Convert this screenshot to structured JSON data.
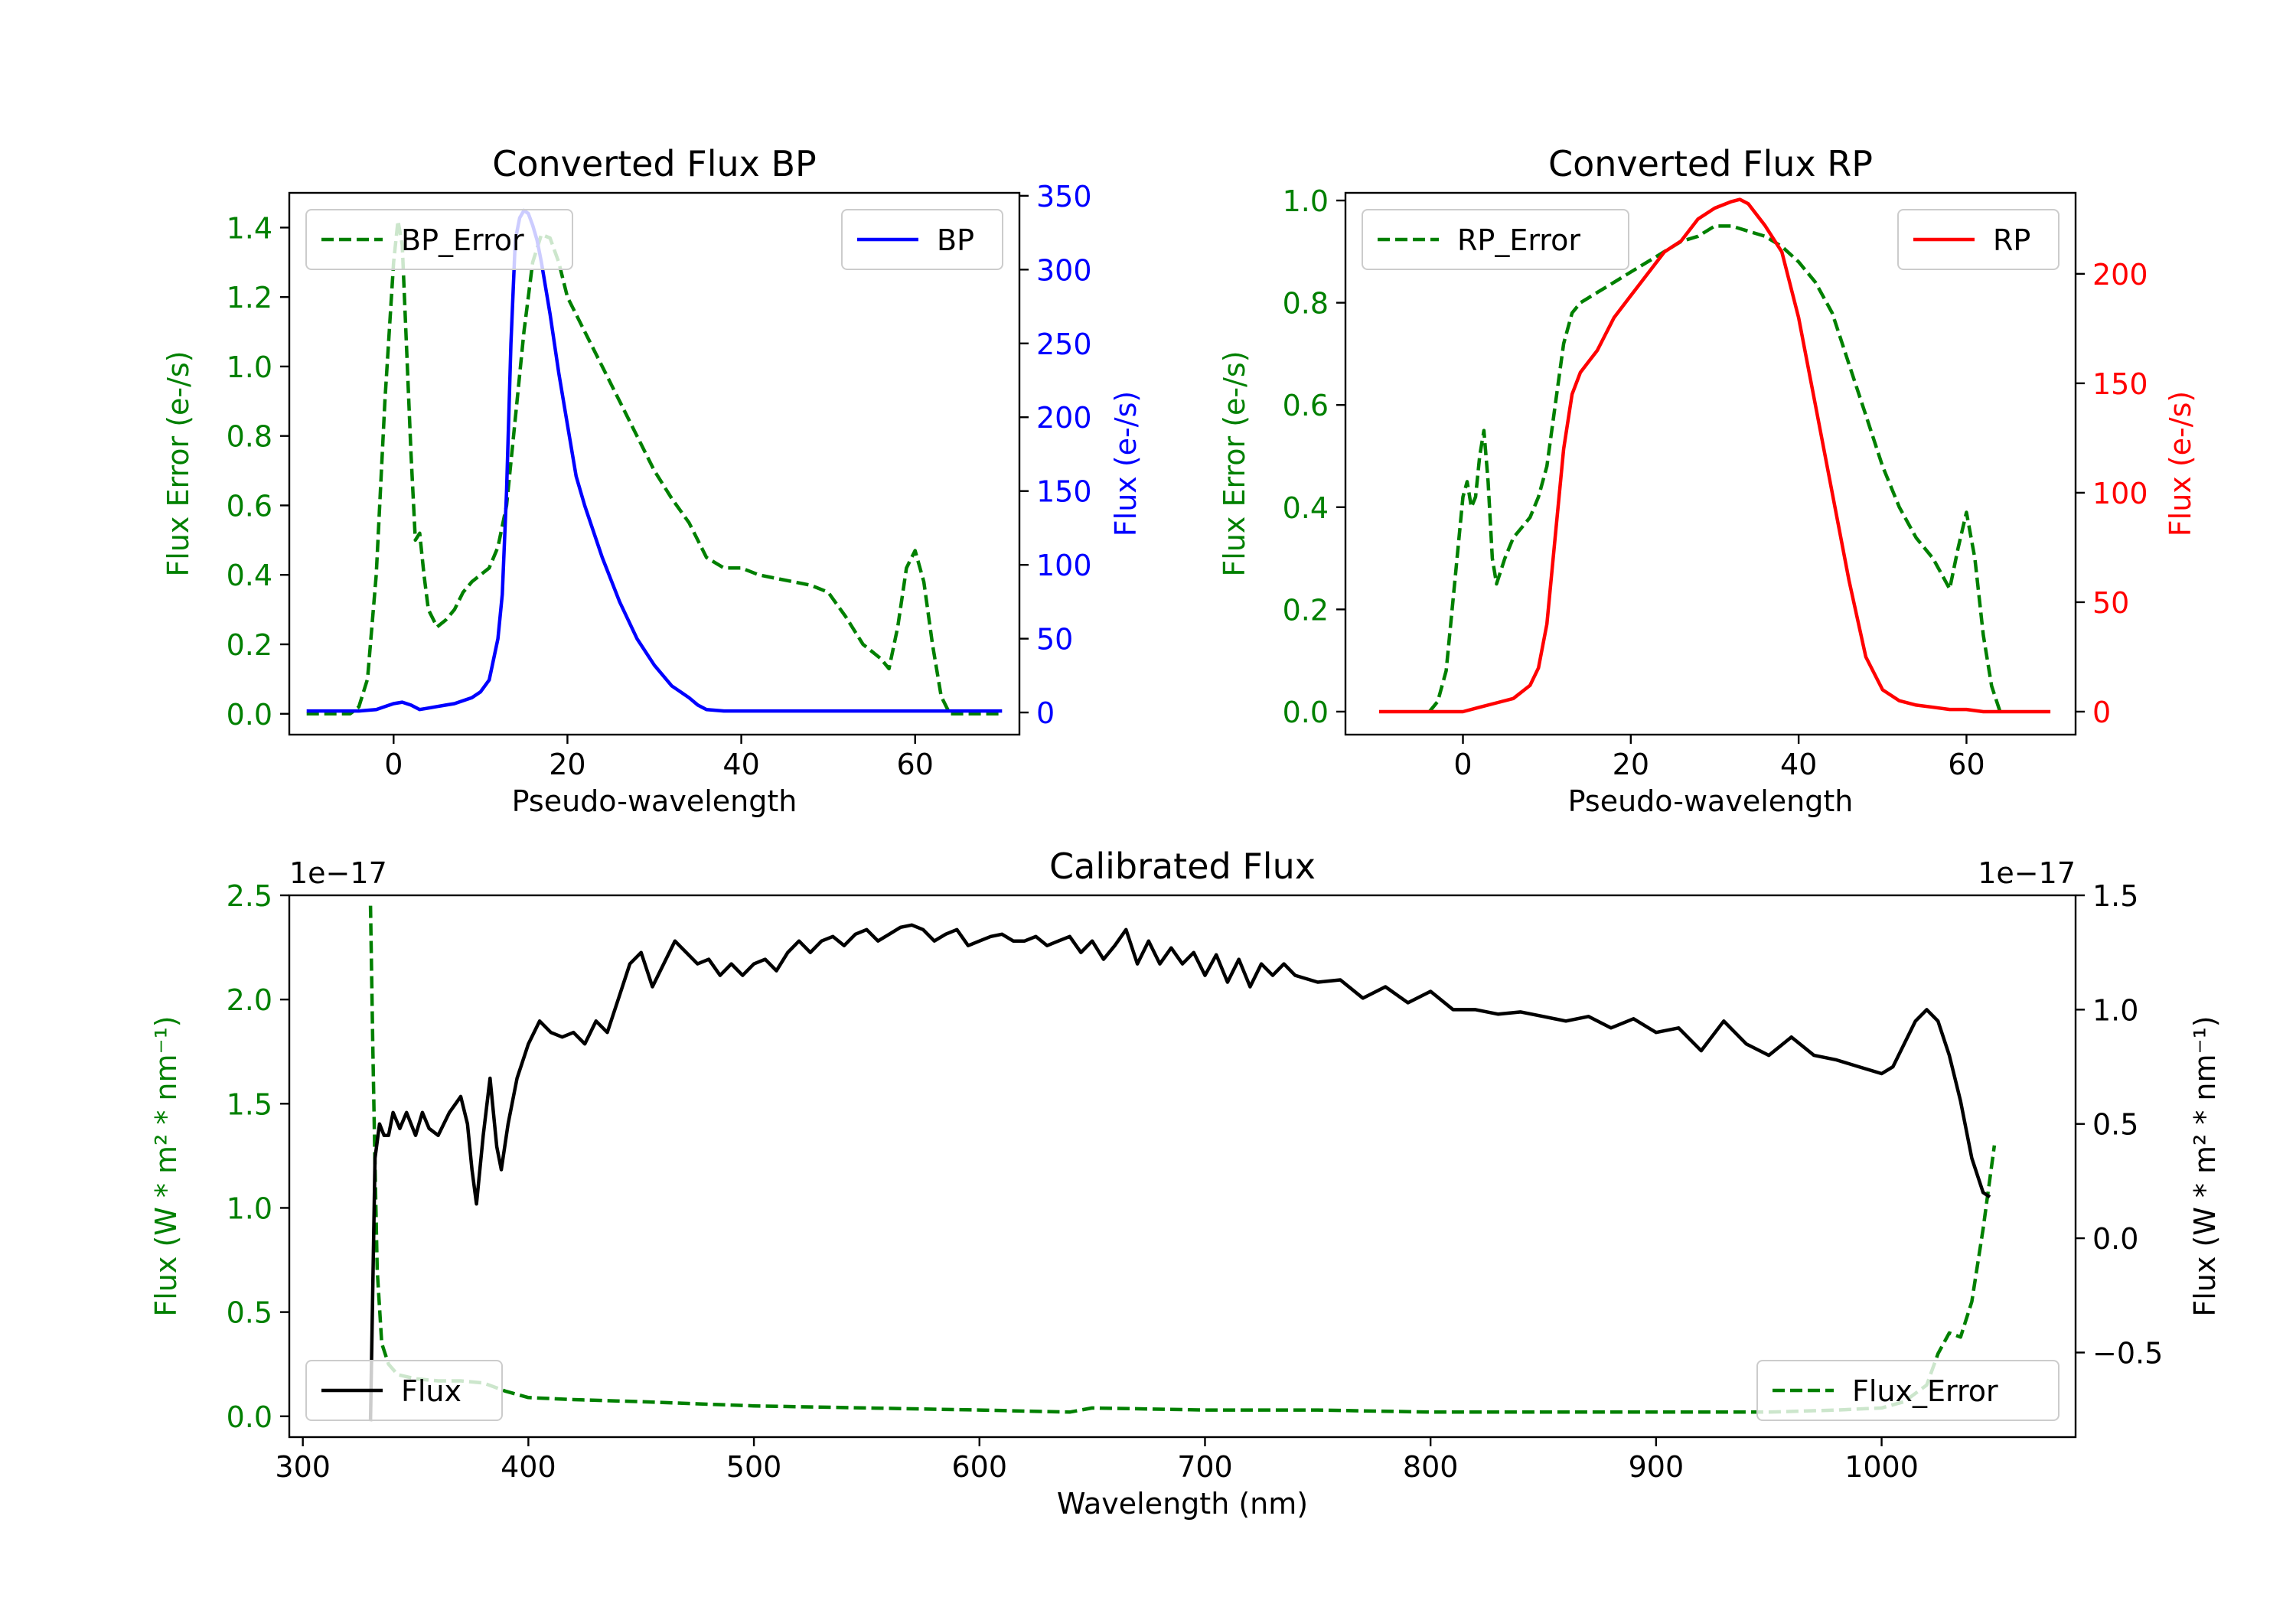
{
  "chart_data": [
    {
      "id": "bp",
      "type": "line",
      "title": "Converted Flux BP",
      "xlabel": "Pseudo-wavelength",
      "ylabel_left": "Flux Error (e-/s)",
      "ylabel_right": "Flux (e-/s)",
      "xlim": [
        -12,
        72
      ],
      "ylim_left": [
        -0.06,
        1.5
      ],
      "ylim_right": [
        -15,
        352
      ],
      "xticks": [
        0,
        20,
        40,
        60
      ],
      "yticks_left": [
        0.0,
        0.2,
        0.4,
        0.6,
        0.8,
        1.0,
        1.2,
        1.4
      ],
      "yticks_right": [
        0,
        50,
        100,
        150,
        200,
        250,
        300,
        350
      ],
      "left_color": "#008000",
      "right_color": "#0000ff",
      "series": [
        {
          "name": "BP_Error",
          "axis": "left",
          "style": "dashed",
          "color": "#008000",
          "x": [
            -10,
            -5,
            -4,
            -3,
            -2,
            -1,
            0,
            0.5,
            1,
            1.5,
            2,
            2.5,
            3,
            3.5,
            4,
            5,
            6,
            7,
            8,
            9,
            10,
            11,
            12,
            13,
            14,
            15,
            16,
            17,
            18,
            19,
            20,
            22,
            24,
            26,
            28,
            30,
            32,
            34,
            36,
            38,
            40,
            42,
            44,
            46,
            48,
            50,
            52,
            54,
            56,
            57,
            58,
            59,
            60,
            61,
            62,
            63,
            64,
            66,
            68,
            70
          ],
          "y": [
            0.0,
            0.0,
            0.02,
            0.1,
            0.4,
            0.9,
            1.3,
            1.42,
            1.35,
            1.05,
            0.75,
            0.5,
            0.52,
            0.4,
            0.3,
            0.25,
            0.27,
            0.3,
            0.35,
            0.38,
            0.4,
            0.42,
            0.48,
            0.6,
            0.85,
            1.1,
            1.3,
            1.38,
            1.37,
            1.3,
            1.2,
            1.1,
            1.0,
            0.9,
            0.8,
            0.7,
            0.62,
            0.55,
            0.45,
            0.42,
            0.42,
            0.4,
            0.39,
            0.38,
            0.37,
            0.35,
            0.28,
            0.2,
            0.16,
            0.13,
            0.25,
            0.42,
            0.47,
            0.38,
            0.2,
            0.05,
            0.0,
            0.0,
            0.0,
            0.0
          ]
        },
        {
          "name": "BP",
          "axis": "right",
          "style": "solid",
          "color": "#0000ff",
          "x": [
            -10,
            -6,
            -4,
            -2,
            0,
            1,
            2,
            3,
            4,
            5,
            6,
            7,
            8,
            9,
            10,
            11,
            12,
            12.5,
            13,
            13.5,
            14,
            14.5,
            15,
            15.5,
            16,
            16.5,
            17,
            18,
            19,
            20,
            21,
            22,
            24,
            26,
            28,
            30,
            32,
            34,
            35,
            36,
            38,
            40,
            42,
            44,
            46,
            48,
            50,
            52,
            54,
            56,
            58,
            60,
            62,
            64,
            66,
            68,
            70
          ],
          "y": [
            1,
            1,
            1,
            2,
            6,
            7,
            5,
            2,
            3,
            4,
            5,
            6,
            8,
            10,
            14,
            22,
            50,
            80,
            150,
            250,
            320,
            335,
            340,
            338,
            330,
            320,
            305,
            270,
            230,
            195,
            160,
            140,
            105,
            75,
            50,
            32,
            18,
            10,
            5,
            2,
            1,
            1,
            1,
            1,
            1,
            1,
            1,
            1,
            1,
            1,
            1,
            1,
            1,
            1,
            1,
            1,
            1
          ]
        }
      ],
      "legend": [
        {
          "label": "BP_Error",
          "position": "upper left"
        },
        {
          "label": "BP",
          "position": "upper right"
        }
      ]
    },
    {
      "id": "rp",
      "type": "line",
      "title": "Converted Flux RP",
      "xlabel": "Pseudo-wavelength",
      "ylabel_left": "Flux Error (e-/s)",
      "ylabel_right": "Flux (e-/s)",
      "xlim": [
        -14,
        73
      ],
      "ylim_left": [
        -0.045,
        1.015
      ],
      "ylim_right": [
        -10.5,
        237
      ],
      "xticks": [
        0,
        20,
        40,
        60
      ],
      "yticks_left": [
        0.0,
        0.2,
        0.4,
        0.6,
        0.8,
        1.0
      ],
      "yticks_right": [
        0,
        50,
        100,
        150,
        200
      ],
      "left_color": "#008000",
      "right_color": "#ff0000",
      "series": [
        {
          "name": "RP_Error",
          "axis": "left",
          "style": "dashed",
          "color": "#008000",
          "x": [
            -4,
            -3,
            -2,
            -1,
            0,
            0.5,
            1,
            1.5,
            2,
            2.5,
            3,
            3.5,
            4,
            5,
            6,
            7,
            8,
            9,
            10,
            11,
            12,
            13,
            14,
            15,
            16,
            18,
            20,
            22,
            24,
            26,
            28,
            30,
            32,
            34,
            36,
            38,
            40,
            42,
            44,
            46,
            48,
            50,
            52,
            54,
            56,
            57,
            58,
            59,
            60,
            61,
            62,
            63,
            64
          ],
          "y": [
            0.0,
            0.02,
            0.08,
            0.25,
            0.42,
            0.45,
            0.4,
            0.42,
            0.5,
            0.55,
            0.45,
            0.3,
            0.25,
            0.3,
            0.34,
            0.36,
            0.38,
            0.42,
            0.48,
            0.6,
            0.72,
            0.78,
            0.8,
            0.81,
            0.82,
            0.84,
            0.86,
            0.88,
            0.9,
            0.92,
            0.93,
            0.95,
            0.95,
            0.94,
            0.93,
            0.91,
            0.88,
            0.84,
            0.78,
            0.68,
            0.58,
            0.48,
            0.4,
            0.34,
            0.3,
            0.27,
            0.24,
            0.32,
            0.39,
            0.3,
            0.15,
            0.05,
            0.0
          ]
        },
        {
          "name": "RP",
          "axis": "right",
          "style": "solid",
          "color": "#ff0000",
          "x": [
            -10,
            -5,
            -2,
            0,
            2,
            4,
            6,
            8,
            9,
            10,
            11,
            12,
            13,
            14,
            15,
            16,
            18,
            20,
            22,
            24,
            26,
            28,
            30,
            32,
            33,
            34,
            36,
            38,
            40,
            42,
            44,
            46,
            48,
            50,
            52,
            54,
            56,
            58,
            60,
            62,
            64,
            66,
            70
          ],
          "y": [
            0,
            0,
            0,
            0,
            2,
            4,
            6,
            12,
            20,
            40,
            80,
            120,
            145,
            155,
            160,
            165,
            180,
            190,
            200,
            210,
            215,
            225,
            230,
            233,
            234,
            232,
            222,
            210,
            180,
            140,
            100,
            60,
            25,
            10,
            5,
            3,
            2,
            1,
            1,
            0,
            0,
            0,
            0
          ]
        }
      ],
      "legend": [
        {
          "label": "RP_Error",
          "position": "upper left"
        },
        {
          "label": "RP",
          "position": "upper right"
        }
      ]
    },
    {
      "id": "cal",
      "type": "line",
      "title": "Calibrated Flux",
      "xlabel": "Wavelength (nm)",
      "ylabel_left": "Flux (W * m² * nm⁻¹)",
      "ylabel_right": "Flux (W * m² * nm⁻¹)",
      "offset_left": "1e−17",
      "offset_right": "1e−17",
      "xlim": [
        294,
        1086
      ],
      "ylim_left": [
        -0.1,
        2.5
      ],
      "ylim_right": [
        -0.87,
        1.5
      ],
      "xticks": [
        300,
        400,
        500,
        600,
        700,
        800,
        900,
        1000
      ],
      "yticks_left": [
        0.0,
        0.5,
        1.0,
        1.5,
        2.0,
        2.5
      ],
      "yticks_left_labels": [
        "0.0",
        "0.5",
        "1.0",
        "1.5",
        "2.0",
        "2.5"
      ],
      "yticks_right": [
        -0.5,
        0.0,
        0.5,
        1.0,
        1.5
      ],
      "yticks_right_labels": [
        "−0.5",
        "0.0",
        "0.5",
        "1.0",
        "1.5"
      ],
      "left_color": "#008000",
      "right_color": "#000000",
      "series": [
        {
          "name": "Flux_Error",
          "axis": "left",
          "style": "dashed",
          "color": "#008000",
          "x": [
            330,
            331,
            332,
            333,
            335,
            338,
            342,
            350,
            360,
            370,
            380,
            390,
            400,
            420,
            450,
            500,
            550,
            600,
            640,
            650,
            700,
            750,
            800,
            850,
            900,
            950,
            980,
            1000,
            1010,
            1020,
            1025,
            1030,
            1035,
            1040,
            1045,
            1050
          ],
          "y": [
            2.45,
            1.8,
            1.2,
            0.7,
            0.35,
            0.25,
            0.2,
            0.18,
            0.17,
            0.17,
            0.16,
            0.12,
            0.09,
            0.08,
            0.07,
            0.05,
            0.04,
            0.03,
            0.02,
            0.04,
            0.03,
            0.03,
            0.02,
            0.02,
            0.02,
            0.02,
            0.03,
            0.04,
            0.07,
            0.15,
            0.3,
            0.4,
            0.38,
            0.55,
            0.9,
            1.3
          ]
        },
        {
          "name": "Flux",
          "axis": "right",
          "style": "solid",
          "color": "#000000",
          "x": [
            330,
            332,
            334,
            336,
            338,
            340,
            343,
            346,
            350,
            353,
            356,
            360,
            365,
            370,
            373,
            375,
            377,
            380,
            383,
            386,
            388,
            391,
            395,
            400,
            405,
            410,
            415,
            420,
            425,
            430,
            435,
            440,
            445,
            450,
            455,
            460,
            465,
            470,
            475,
            480,
            485,
            490,
            495,
            500,
            505,
            510,
            515,
            520,
            525,
            530,
            535,
            540,
            545,
            550,
            555,
            560,
            565,
            570,
            575,
            580,
            585,
            590,
            595,
            600,
            605,
            610,
            615,
            620,
            625,
            630,
            635,
            640,
            645,
            650,
            655,
            660,
            665,
            670,
            675,
            680,
            685,
            690,
            695,
            700,
            705,
            710,
            715,
            720,
            725,
            730,
            735,
            740,
            750,
            760,
            770,
            780,
            790,
            800,
            810,
            820,
            830,
            840,
            850,
            860,
            870,
            880,
            890,
            900,
            910,
            920,
            930,
            940,
            950,
            960,
            970,
            980,
            990,
            1000,
            1005,
            1010,
            1015,
            1020,
            1025,
            1030,
            1035,
            1040,
            1045,
            1048
          ],
          "y": [
            -0.8,
            0.35,
            0.5,
            0.45,
            0.45,
            0.55,
            0.48,
            0.55,
            0.45,
            0.55,
            0.48,
            0.45,
            0.55,
            0.62,
            0.5,
            0.3,
            0.15,
            0.45,
            0.7,
            0.4,
            0.3,
            0.5,
            0.7,
            0.85,
            0.95,
            0.9,
            0.88,
            0.9,
            0.85,
            0.95,
            0.9,
            1.05,
            1.2,
            1.25,
            1.1,
            1.2,
            1.3,
            1.25,
            1.2,
            1.22,
            1.15,
            1.2,
            1.15,
            1.2,
            1.22,
            1.17,
            1.25,
            1.3,
            1.25,
            1.3,
            1.32,
            1.28,
            1.33,
            1.35,
            1.3,
            1.33,
            1.36,
            1.37,
            1.35,
            1.3,
            1.33,
            1.35,
            1.28,
            1.3,
            1.32,
            1.33,
            1.3,
            1.3,
            1.32,
            1.28,
            1.3,
            1.32,
            1.25,
            1.3,
            1.22,
            1.28,
            1.35,
            1.2,
            1.3,
            1.2,
            1.27,
            1.2,
            1.25,
            1.15,
            1.24,
            1.12,
            1.22,
            1.1,
            1.2,
            1.15,
            1.2,
            1.15,
            1.12,
            1.13,
            1.05,
            1.1,
            1.03,
            1.08,
            1.0,
            1.0,
            0.98,
            0.99,
            0.97,
            0.95,
            0.97,
            0.92,
            0.96,
            0.9,
            0.92,
            0.82,
            0.95,
            0.85,
            0.8,
            0.88,
            0.8,
            0.78,
            0.75,
            0.72,
            0.75,
            0.85,
            0.95,
            1.0,
            0.95,
            0.8,
            0.6,
            0.35,
            0.2,
            0.18
          ]
        }
      ],
      "legend": [
        {
          "label": "Flux",
          "position": "lower left"
        },
        {
          "label": "Flux_Error",
          "position": "lower right"
        }
      ]
    }
  ]
}
